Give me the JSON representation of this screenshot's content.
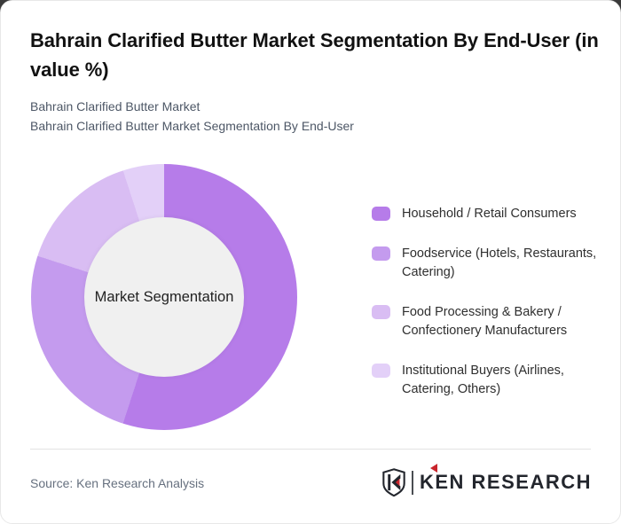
{
  "card": {
    "title": "Bahrain Clarified Butter Market Segmentation By End-User (in value %)",
    "subtitle_line1": "Bahrain Clarified Butter Market",
    "subtitle_line2": "Bahrain Clarified Butter Market Segmentation By End-User"
  },
  "chart_data": {
    "type": "pie",
    "variant": "donut",
    "center_label": "Market Segmentation",
    "unit": "%",
    "categories": [
      "Household / Retail Consumers",
      "Foodservice (Hotels, Restaurants, Catering)",
      "Food Processing & Bakery / Confectionery Manufacturers",
      "Institutional Buyers (Airlines, Catering, Others)"
    ],
    "values": [
      55,
      25,
      15,
      5
    ],
    "colors": [
      "#b67ce9",
      "#c49bee",
      "#d9bdf3",
      "#e3d0f8"
    ],
    "start_angle_deg": 0,
    "direction": "clockwise",
    "inner_hole_color": "#f0f0f0",
    "legend_position": "right"
  },
  "legend": {
    "items": [
      {
        "label": "Household / Retail Consumers",
        "color": "#b67ce9"
      },
      {
        "label": "Foodservice (Hotels, Restaurants, Catering)",
        "color": "#c49bee"
      },
      {
        "label": "Food Processing & Bakery / Confectionery Manufacturers",
        "color": "#d9bdf3"
      },
      {
        "label": "Institutional Buyers (Airlines, Catering, Others)",
        "color": "#e3d0f8"
      }
    ]
  },
  "footer": {
    "source_text": "Source: Ken Research Analysis",
    "logo": {
      "brand_text": "KEN RESEARCH",
      "badge_letter": "K",
      "accent_color": "#c9252c",
      "dark_color": "#23262d"
    }
  }
}
